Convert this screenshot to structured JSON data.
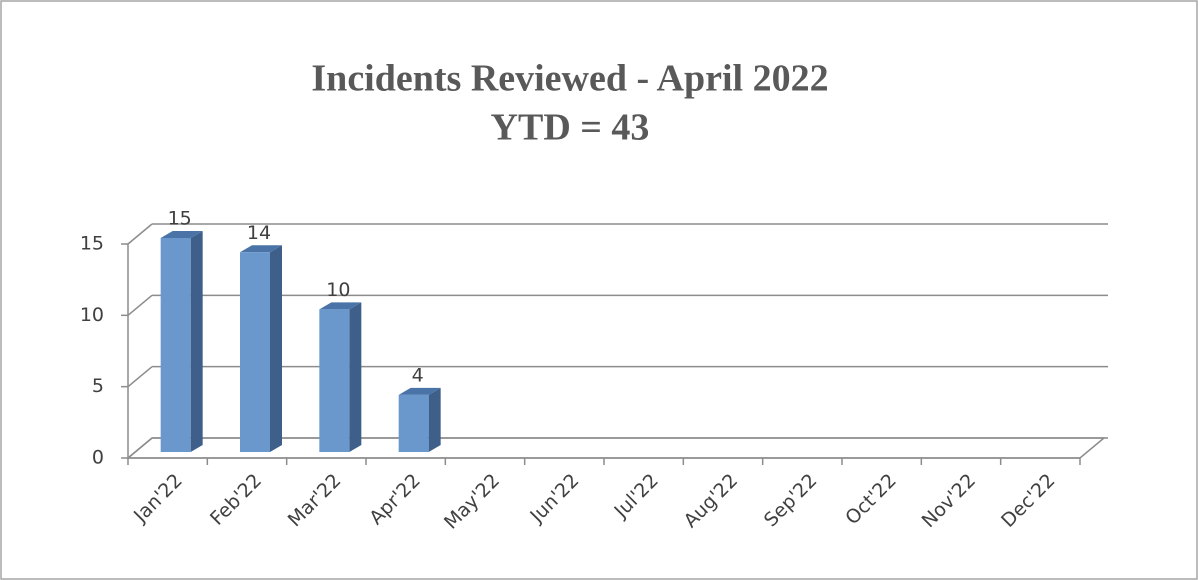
{
  "chart_data": {
    "type": "bar3d",
    "title": "Incidents Reviewed - April 2022",
    "subtitle": "YTD = 43",
    "categories": [
      "Jan'22",
      "Feb'22",
      "Mar'22",
      "Apr'22",
      "May'22",
      "Jun'22",
      "Jul'22",
      "Aug'22",
      "Sep'22",
      "Oct'22",
      "Nov'22",
      "Dec'22"
    ],
    "values": [
      15,
      14,
      10,
      4,
      null,
      null,
      null,
      null,
      null,
      null,
      null,
      null
    ],
    "color": "#6a98cc",
    "ylim": [
      0,
      15
    ],
    "yticks": [
      0,
      5,
      10,
      15
    ],
    "grid": true
  }
}
